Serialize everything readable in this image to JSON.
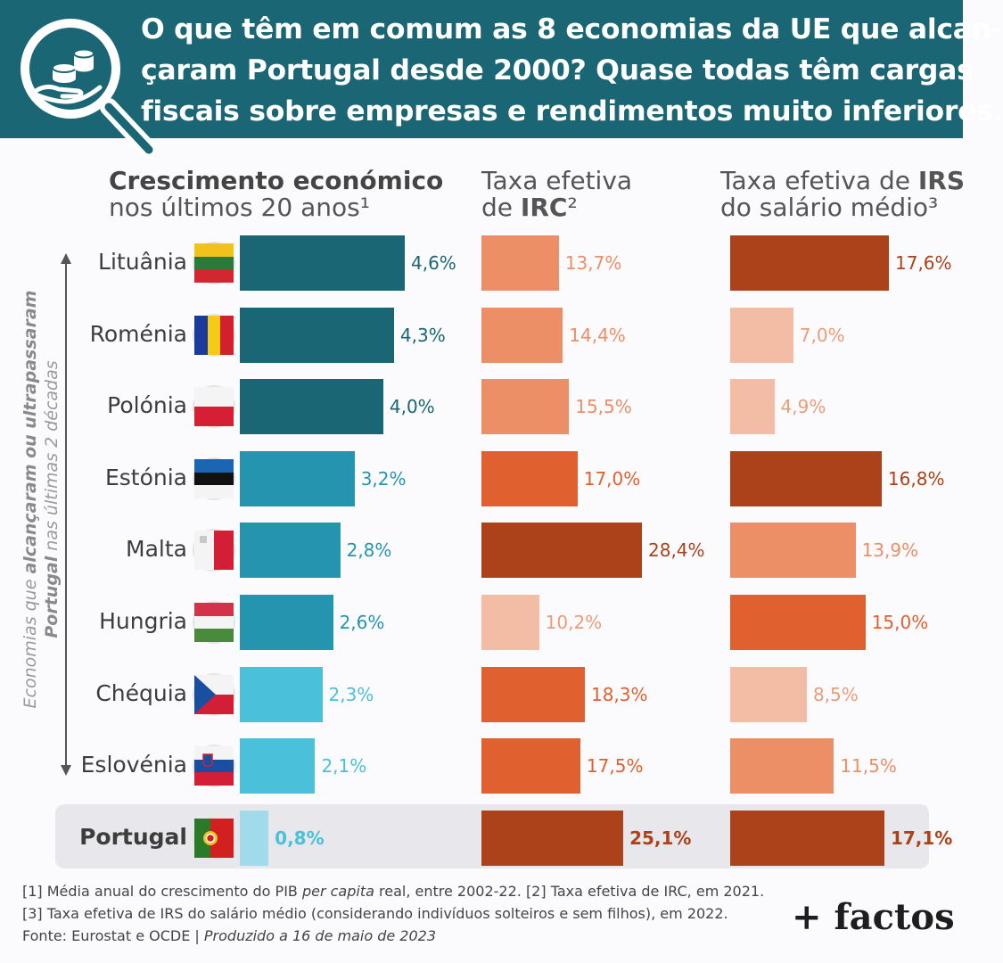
{
  "title": {
    "line1": "O que têm em comum as 8 economias da UE que alcan-",
    "line2": "çaram Portugal desde 2000? Quase todas têm cargas",
    "line3": "fiscais sobre empresas e rendimentos muito inferiores."
  },
  "columns": {
    "growth": {
      "line1": "Crescimento económico",
      "line2": "nos últimos 20 anos¹"
    },
    "irc": {
      "line1": "Taxa efetiva",
      "line2_pre": "de ",
      "line2_bold": "IRC",
      "line2_sup": "²"
    },
    "irs": {
      "line1_pre": "Taxa efetiva de ",
      "line1_bold": "IRS",
      "line2": "do salário médio³"
    }
  },
  "side_label": {
    "p1": "Economias que ",
    "p2": "alcançaram ou ultrapassaram",
    "p3": "Portugal",
    "p4": " nas últimas 2 décadas"
  },
  "chart_data": [
    {
      "type": "bar",
      "orientation": "horizontal",
      "title": "Crescimento económico nos últimos 20 anos¹",
      "categories": [
        "Lituânia",
        "Roménia",
        "Polónia",
        "Estónia",
        "Malta",
        "Hungria",
        "Chéquia",
        "Eslovénia",
        "Portugal"
      ],
      "values": [
        4.6,
        4.3,
        4.0,
        3.2,
        2.8,
        2.6,
        2.3,
        2.1,
        0.8
      ],
      "labels": [
        "4,6%",
        "4,3%",
        "4,0%",
        "3,2%",
        "2,8%",
        "2,6%",
        "2,3%",
        "2,1%",
        "0,8%"
      ],
      "xlim": [
        0,
        4.6
      ]
    },
    {
      "type": "bar",
      "orientation": "horizontal",
      "title": "Taxa efetiva de IRC²",
      "categories": [
        "Lituânia",
        "Roménia",
        "Polónia",
        "Estónia",
        "Malta",
        "Hungria",
        "Chéquia",
        "Eslovénia",
        "Portugal"
      ],
      "values": [
        13.7,
        14.4,
        15.5,
        17.0,
        28.4,
        10.2,
        18.3,
        17.5,
        25.1
      ],
      "labels": [
        "13,7%",
        "14,4%",
        "15,5%",
        "17,0%",
        "28,4%",
        "10,2%",
        "18,3%",
        "17,5%",
        "25,1%"
      ],
      "xlim": [
        0,
        28.4
      ]
    },
    {
      "type": "bar",
      "orientation": "horizontal",
      "title": "Taxa efetiva de IRS do salário médio³",
      "categories": [
        "Lituânia",
        "Roménia",
        "Polónia",
        "Estónia",
        "Malta",
        "Hungria",
        "Chéquia",
        "Eslovénia",
        "Portugal"
      ],
      "values": [
        17.6,
        7.0,
        4.9,
        16.8,
        13.9,
        15.0,
        8.5,
        11.5,
        17.1
      ],
      "labels": [
        "17,6%",
        "7,0%",
        "4,9%",
        "16,8%",
        "13,9%",
        "15,0%",
        "8,5%",
        "11,5%",
        "17,1%"
      ],
      "xlim": [
        0,
        17.6
      ]
    }
  ],
  "colors": {
    "header": "#1a6675",
    "growth": [
      "#1a6675",
      "#1a6675",
      "#1a6675",
      "#2594ae",
      "#2594ae",
      "#2594ae",
      "#4ac0da",
      "#4ac0da",
      "#9fdbea"
    ],
    "growth_text": [
      "#1a6675",
      "#1a6675",
      "#1a6675",
      "#2594ae",
      "#2594ae",
      "#2594ae",
      "#4ac0da",
      "#4ac0da",
      "#4ac0da"
    ],
    "irc": [
      "#ec8e66",
      "#ec8e66",
      "#ec8e66",
      "#e0602f",
      "#ab4219",
      "#f3bca5",
      "#e0602f",
      "#e0602f",
      "#ab4219"
    ],
    "irs": [
      "#ab4219",
      "#f3bca5",
      "#f3bca5",
      "#ab4219",
      "#ec8e66",
      "#e0602f",
      "#f3bca5",
      "#ec8e66",
      "#ab4219"
    ]
  },
  "countries": [
    {
      "name": "Lituânia",
      "flag": "lithuania-flag-icon"
    },
    {
      "name": "Roménia",
      "flag": "romania-flag-icon"
    },
    {
      "name": "Polónia",
      "flag": "poland-flag-icon"
    },
    {
      "name": "Estónia",
      "flag": "estonia-flag-icon"
    },
    {
      "name": "Malta",
      "flag": "malta-flag-icon"
    },
    {
      "name": "Hungria",
      "flag": "hungary-flag-icon"
    },
    {
      "name": "Chéquia",
      "flag": "czechia-flag-icon"
    },
    {
      "name": "Eslovénia",
      "flag": "slovenia-flag-icon"
    },
    {
      "name": "Portugal",
      "flag": "portugal-flag-icon"
    }
  ],
  "footnote": {
    "a": "[1] Média anual do crescimento do PIB ",
    "b": "per capita",
    "c": " real, entre 2002-22. [2] Taxa efetiva de IRC, em 2021. [3] Taxa efetiva de IRS do salário médio (considerando indivíduos solteiros e sem filhos), em 2022. Fonte: Eurostat e OCDE | ",
    "d": "Produzido a 16 de maio de 2023"
  },
  "brand": "+ factos",
  "logo_icon": "magnifier-coins-hand-icon"
}
